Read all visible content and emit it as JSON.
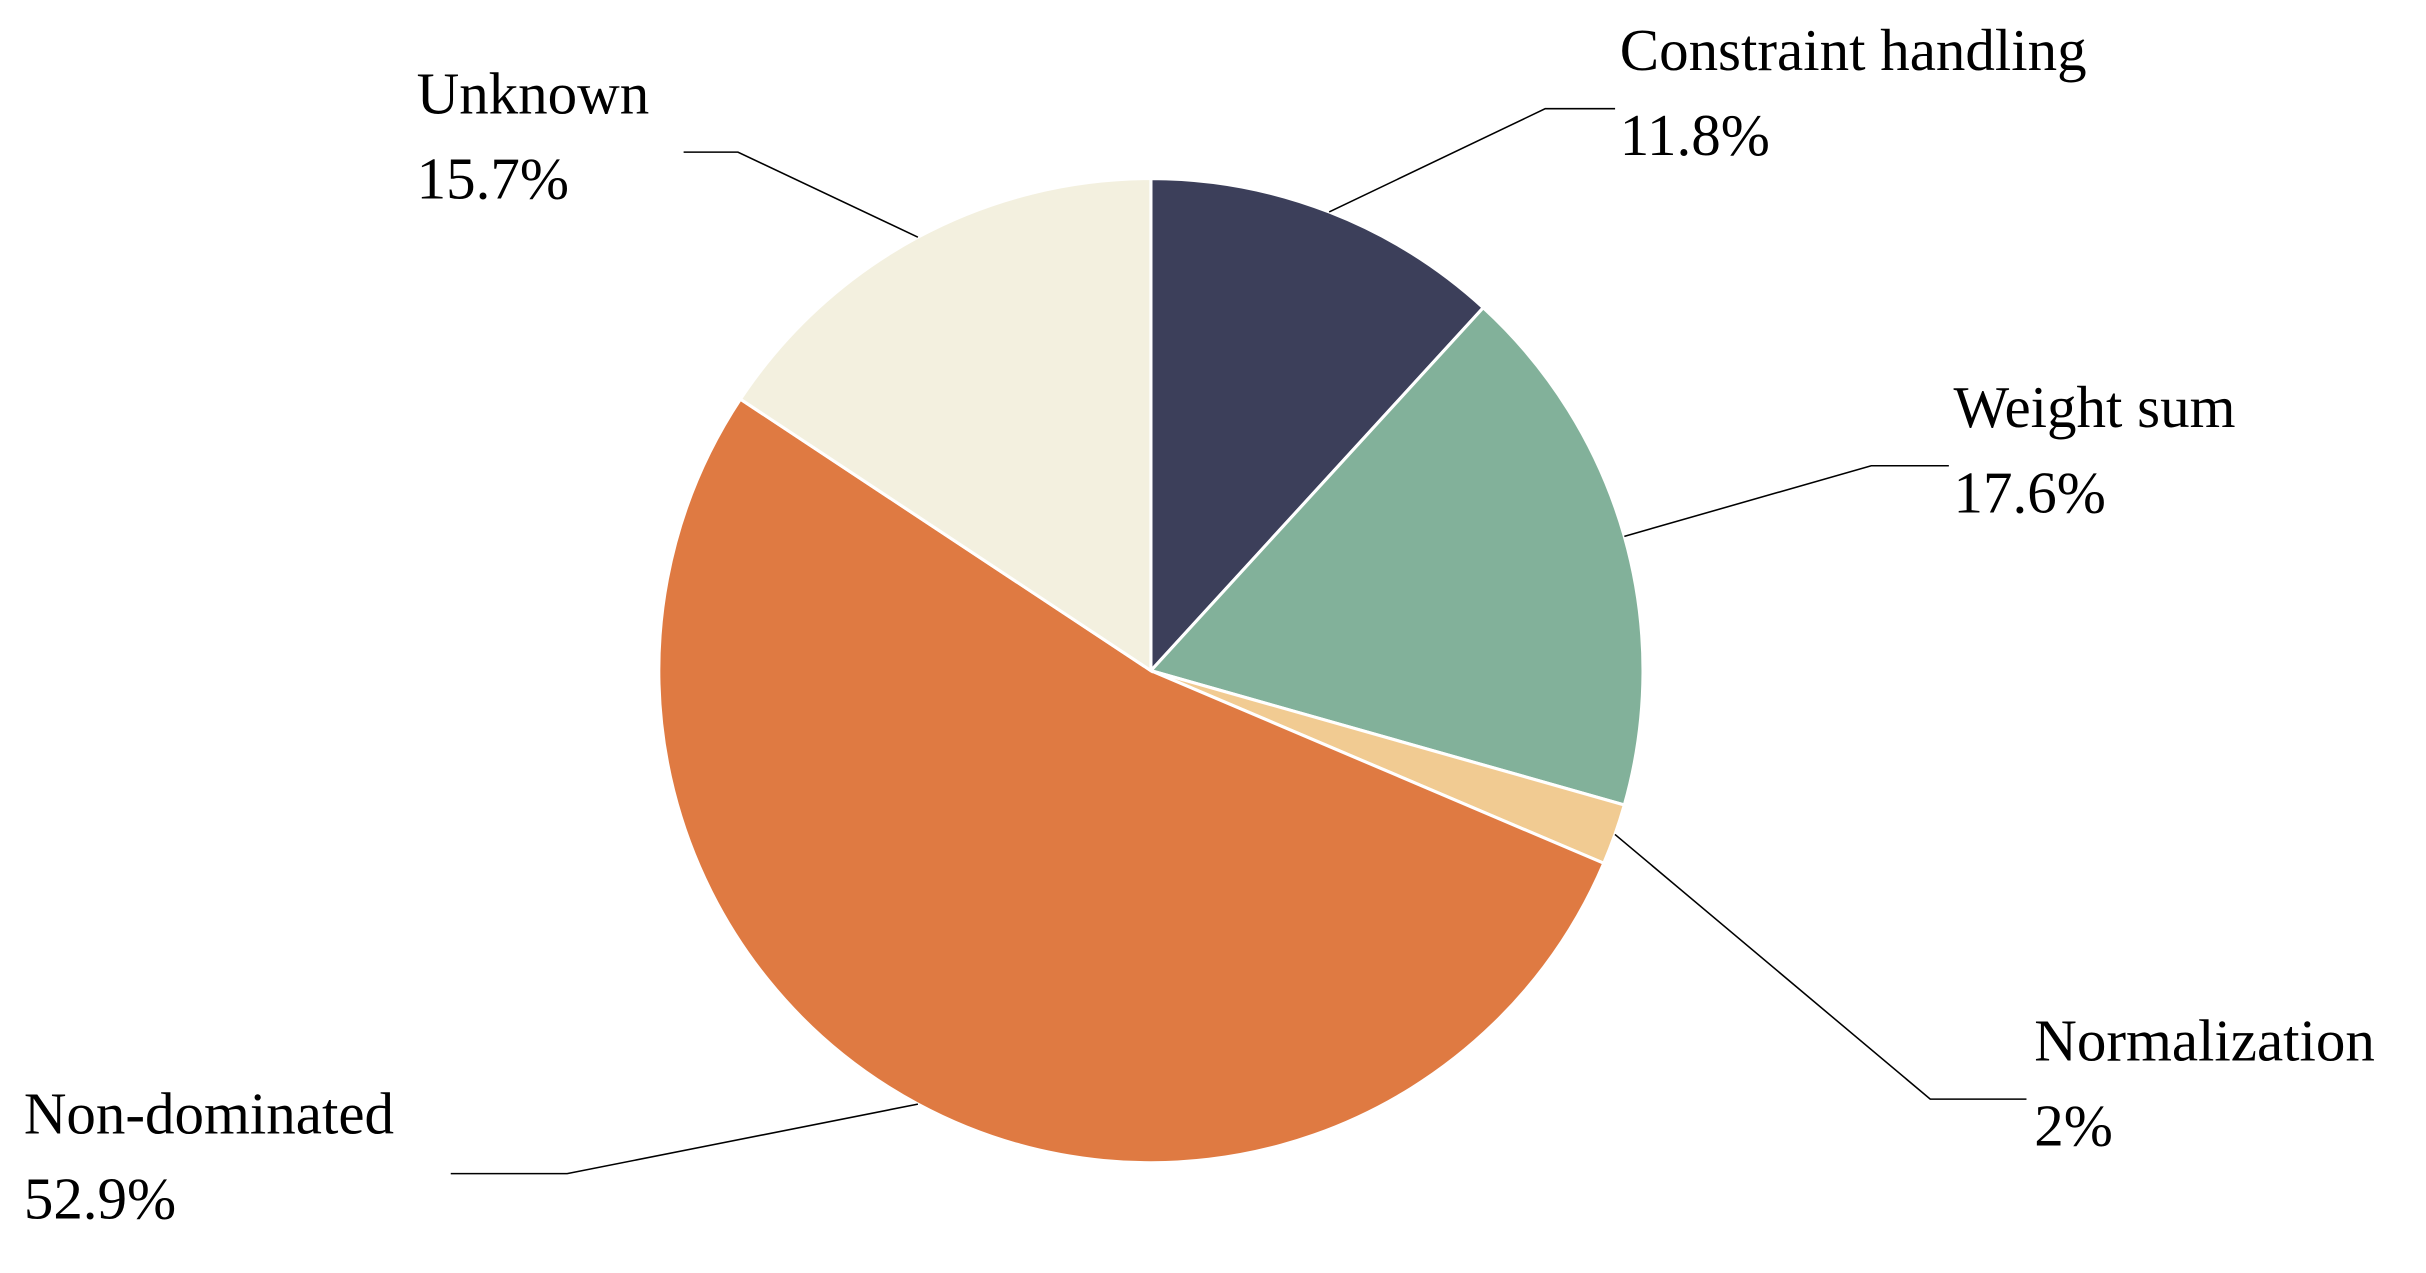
{
  "chart_data": {
    "type": "pie",
    "categories": [
      "Constraint handling",
      "Weight sum",
      "Normalization",
      "Non-dominated",
      "Unknown"
    ],
    "values": [
      11.8,
      17.6,
      2,
      52.9,
      15.7
    ],
    "value_labels": [
      "11.8%",
      "17.6%",
      "2%",
      "52.9%",
      "15.7%"
    ],
    "colors": [
      "#3c3f5a",
      "#82b19a",
      "#f1cb92",
      "#df7a42",
      "#f3f0df"
    ]
  }
}
